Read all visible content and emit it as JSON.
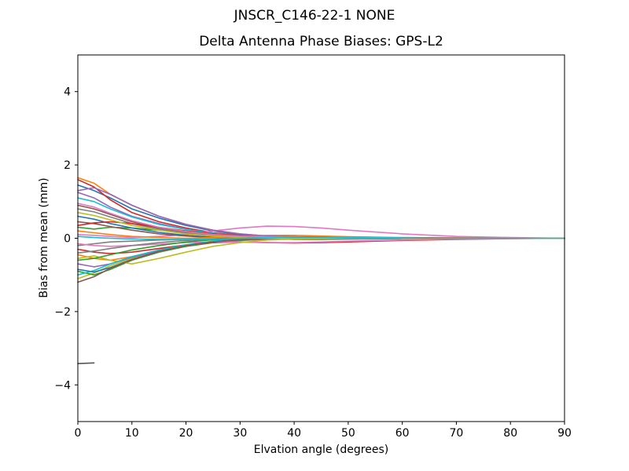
{
  "chart_data": {
    "type": "line",
    "title": "JNSCR_C146-22-1 NONE",
    "subtitle": "Delta Antenna Phase Biases: GPS-L2",
    "xlabel": "Elvation angle (degrees)",
    "ylabel": "Bias from mean (mm)",
    "xlim": [
      0,
      90
    ],
    "ylim": [
      -5,
      5
    ],
    "x_ticks": [
      0,
      10,
      20,
      30,
      40,
      50,
      60,
      70,
      80,
      90
    ],
    "y_ticks": [
      -4,
      -2,
      0,
      2,
      4
    ],
    "grid": false,
    "legend": "none",
    "background": "#ffffff",
    "x": [
      0,
      3,
      6,
      10,
      15,
      20,
      25,
      30,
      35,
      40,
      45,
      50,
      60,
      70,
      80,
      90
    ],
    "series": [
      {
        "color": "#1f77b4",
        "values": [
          1.45,
          1.3,
          1.1,
          0.8,
          0.55,
          0.35,
          0.2,
          0.1,
          0.05,
          0.02,
          0.01,
          0.0,
          0.0,
          0.0,
          0.0,
          0.0
        ]
      },
      {
        "color": "#ff7f0e",
        "values": [
          1.65,
          1.5,
          1.2,
          0.9,
          0.6,
          0.38,
          0.22,
          0.12,
          0.06,
          0.03,
          0.02,
          0.01,
          0.01,
          0.0,
          0.0,
          0.0
        ]
      },
      {
        "color": "#2ca02c",
        "values": [
          0.3,
          0.25,
          0.3,
          0.28,
          0.22,
          0.15,
          0.1,
          0.08,
          0.05,
          0.03,
          0.02,
          0.01,
          0.0,
          0.0,
          0.0,
          0.0
        ]
      },
      {
        "color": "#d62728",
        "values": [
          1.6,
          1.4,
          1.05,
          0.7,
          0.45,
          0.28,
          0.15,
          0.08,
          0.04,
          0.02,
          0.01,
          0.0,
          0.0,
          0.0,
          0.0,
          0.0
        ]
      },
      {
        "color": "#9467bd",
        "values": [
          1.25,
          1.1,
          0.85,
          0.6,
          0.4,
          0.25,
          0.12,
          0.05,
          0.02,
          0.0,
          -0.01,
          -0.01,
          0.0,
          0.0,
          0.0,
          0.0
        ]
      },
      {
        "color": "#8c564b",
        "values": [
          0.9,
          0.8,
          0.65,
          0.45,
          0.28,
          0.15,
          0.08,
          0.04,
          0.02,
          0.01,
          0.0,
          0.0,
          0.0,
          0.0,
          0.0,
          0.0
        ]
      },
      {
        "color": "#e377c2",
        "values": [
          0.1,
          0.08,
          0.05,
          0.02,
          0.05,
          0.1,
          0.2,
          0.28,
          0.33,
          0.32,
          0.28,
          0.22,
          0.12,
          0.05,
          0.02,
          0.0
        ]
      },
      {
        "color": "#7f7f7f",
        "values": [
          -0.2,
          -0.15,
          -0.1,
          -0.08,
          -0.05,
          -0.03,
          -0.02,
          -0.01,
          0.0,
          0.0,
          0.0,
          0.0,
          0.0,
          0.0,
          0.0,
          0.0
        ]
      },
      {
        "color": "#bcbd22",
        "values": [
          -1.1,
          -0.95,
          -0.75,
          -0.55,
          -0.35,
          -0.2,
          -0.1,
          -0.05,
          -0.02,
          -0.01,
          -0.01,
          0.0,
          0.0,
          0.0,
          0.0,
          0.0
        ]
      },
      {
        "color": "#17becf",
        "values": [
          1.1,
          1.0,
          0.8,
          0.58,
          0.38,
          0.24,
          0.14,
          0.08,
          0.04,
          0.02,
          0.01,
          0.0,
          0.0,
          0.0,
          0.0,
          0.0
        ]
      },
      {
        "color": "#1f77b4",
        "values": [
          0.6,
          0.52,
          0.4,
          0.28,
          0.16,
          0.08,
          0.03,
          0.0,
          -0.02,
          -0.03,
          -0.03,
          -0.02,
          -0.01,
          0.0,
          0.0,
          0.0
        ]
      },
      {
        "color": "#ff7f0e",
        "values": [
          -0.45,
          -0.55,
          -0.6,
          -0.5,
          -0.35,
          -0.22,
          -0.12,
          -0.06,
          -0.03,
          -0.01,
          0.0,
          0.0,
          0.0,
          0.0,
          0.0,
          0.0
        ]
      },
      {
        "color": "#2ca02c",
        "values": [
          -0.9,
          -1.0,
          -0.85,
          -0.6,
          -0.38,
          -0.22,
          -0.12,
          -0.06,
          -0.02,
          0.0,
          0.0,
          0.0,
          0.0,
          0.0,
          0.0,
          0.0
        ]
      },
      {
        "color": "#d62728",
        "values": [
          -0.3,
          -0.38,
          -0.42,
          -0.38,
          -0.28,
          -0.18,
          -0.12,
          -0.1,
          -0.12,
          -0.13,
          -0.12,
          -0.1,
          -0.06,
          -0.03,
          -0.01,
          0.0
        ]
      },
      {
        "color": "#9467bd",
        "values": [
          -0.7,
          -0.78,
          -0.7,
          -0.52,
          -0.34,
          -0.2,
          -0.1,
          -0.05,
          -0.02,
          -0.01,
          0.0,
          0.0,
          0.0,
          0.0,
          0.0,
          0.0
        ]
      },
      {
        "color": "#8c564b",
        "values": [
          0.45,
          0.4,
          0.32,
          0.22,
          0.12,
          0.06,
          0.02,
          0.0,
          0.0,
          0.0,
          0.0,
          0.0,
          0.0,
          0.0,
          0.0,
          0.0
        ]
      },
      {
        "color": "#e377c2",
        "values": [
          -0.15,
          -0.2,
          -0.22,
          -0.2,
          -0.16,
          -0.12,
          -0.1,
          -0.1,
          -0.12,
          -0.12,
          -0.1,
          -0.08,
          -0.05,
          -0.02,
          -0.01,
          0.0
        ]
      },
      {
        "color": "#7f7f7f",
        "values": [
          0.8,
          0.72,
          0.58,
          0.4,
          0.25,
          0.14,
          0.07,
          0.03,
          0.01,
          0.0,
          0.0,
          0.0,
          0.0,
          0.0,
          0.0,
          0.0
        ]
      },
      {
        "color": "#bcbd22",
        "values": [
          -0.55,
          -0.48,
          -0.6,
          -0.7,
          -0.55,
          -0.38,
          -0.22,
          -0.12,
          -0.05,
          -0.02,
          -0.01,
          0.0,
          0.0,
          0.0,
          0.0,
          0.0
        ]
      },
      {
        "color": "#17becf",
        "values": [
          -1.0,
          -0.88,
          -0.7,
          -0.5,
          -0.32,
          -0.18,
          -0.08,
          -0.03,
          0.0,
          0.0,
          0.0,
          0.0,
          0.0,
          0.0,
          0.0,
          0.0
        ]
      },
      {
        "color": "#1f77b4",
        "values": [
          -0.85,
          -0.92,
          -0.8,
          -0.58,
          -0.36,
          -0.2,
          -0.1,
          -0.04,
          -0.01,
          0.0,
          0.0,
          0.0,
          0.0,
          0.0,
          0.0,
          0.0
        ]
      },
      {
        "color": "#ff7f0e",
        "values": [
          0.2,
          0.15,
          0.1,
          0.05,
          0.02,
          0.0,
          0.02,
          0.05,
          0.08,
          0.08,
          0.06,
          0.04,
          0.02,
          0.01,
          0.0,
          0.0
        ]
      },
      {
        "color": "#2ca02c",
        "values": [
          -0.6,
          -0.55,
          -0.45,
          -0.32,
          -0.2,
          -0.1,
          -0.04,
          -0.01,
          0.0,
          0.0,
          0.0,
          0.0,
          0.0,
          0.0,
          0.0,
          0.0
        ]
      },
      {
        "color": "#d62728",
        "values": [
          0.35,
          0.42,
          0.45,
          0.4,
          0.3,
          0.2,
          0.12,
          0.08,
          0.05,
          0.04,
          0.03,
          0.02,
          0.01,
          0.01,
          0.0,
          0.0
        ]
      },
      {
        "color": "#9467bd",
        "values": [
          1.3,
          1.38,
          1.2,
          0.9,
          0.6,
          0.38,
          0.22,
          0.12,
          0.06,
          0.03,
          0.01,
          0.0,
          0.0,
          0.0,
          0.0,
          0.0
        ]
      },
      {
        "color": "#8c564b",
        "values": [
          -1.2,
          -1.05,
          -0.82,
          -0.58,
          -0.36,
          -0.2,
          -0.1,
          -0.04,
          -0.01,
          0.0,
          0.0,
          0.0,
          0.0,
          0.0,
          0.0,
          0.0
        ]
      },
      {
        "color": "#e377c2",
        "values": [
          0.95,
          0.85,
          0.68,
          0.48,
          0.3,
          0.18,
          0.1,
          0.06,
          0.04,
          0.03,
          0.02,
          0.01,
          0.0,
          0.0,
          0.0,
          0.0
        ]
      },
      {
        "color": "#7f7f7f",
        "values": [
          -0.4,
          -0.35,
          -0.28,
          -0.2,
          -0.12,
          -0.06,
          -0.03,
          -0.01,
          0.0,
          0.0,
          0.0,
          0.0,
          0.0,
          0.0,
          0.0,
          0.0
        ]
      },
      {
        "color": "#bcbd22",
        "values": [
          0.7,
          0.62,
          0.5,
          0.35,
          0.22,
          0.12,
          0.06,
          0.02,
          0.0,
          -0.01,
          -0.01,
          0.0,
          0.0,
          0.0,
          0.0,
          0.0
        ]
      },
      {
        "color": "#17becf",
        "values": [
          0.05,
          0.02,
          0.0,
          -0.02,
          -0.03,
          -0.03,
          -0.02,
          0.0,
          0.02,
          0.03,
          0.03,
          0.02,
          0.01,
          0.0,
          0.0,
          0.0
        ]
      },
      {
        "color": "#555555",
        "values": [
          -3.42,
          -3.4,
          null,
          null,
          null,
          null,
          null,
          null,
          null,
          null,
          null,
          null,
          null,
          null,
          null,
          null
        ]
      }
    ]
  }
}
